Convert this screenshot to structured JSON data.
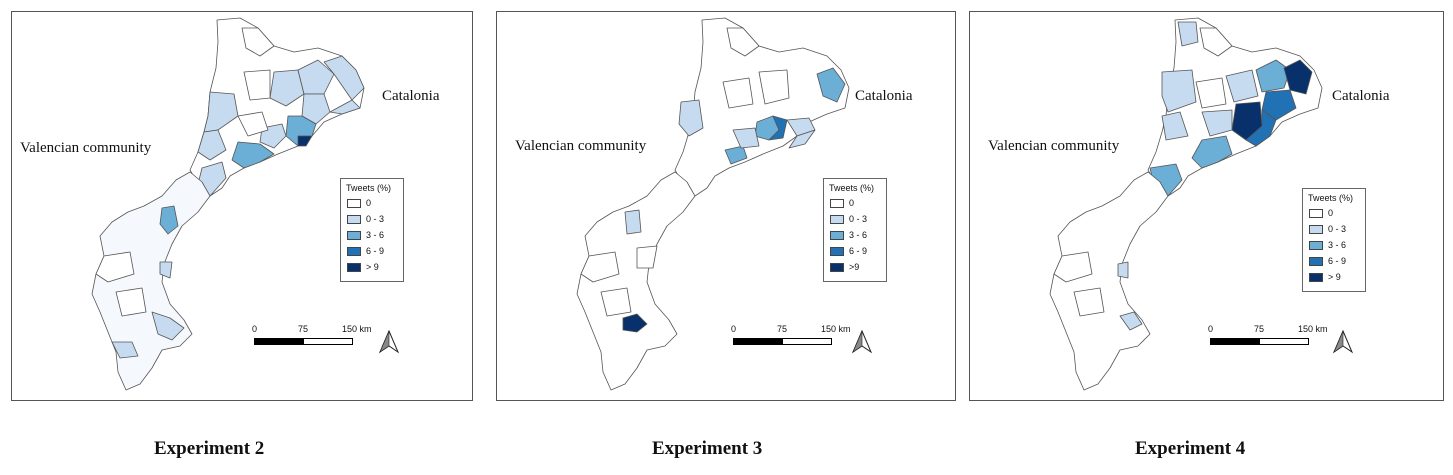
{
  "colors": {
    "c0": "#ffffff",
    "c1": "#c6dbef",
    "c2": "#6baed6",
    "c3": "#2171b5",
    "c4": "#08306b",
    "border": "#555555"
  },
  "panels": [
    {
      "caption": "Experiment 2",
      "region_right": "Catalonia",
      "region_left": "Valencian community",
      "legend": {
        "title": "Tweets (%)",
        "items": [
          "0",
          "0 - 3",
          "3 - 6",
          "6 - 9",
          "> 9"
        ]
      },
      "scale": {
        "ticks": [
          "0",
          "75",
          "150 km"
        ]
      },
      "north_icon": "north-arrow-icon"
    },
    {
      "caption": "Experiment 3",
      "region_right": "Catalonia",
      "region_left": "Valencian community",
      "legend": {
        "title": "Tweets (%)",
        "items": [
          "0",
          "0 - 3",
          "3 - 6",
          "6 - 9",
          ">9"
        ]
      },
      "scale": {
        "ticks": [
          "0",
          "75",
          "150 km"
        ]
      },
      "north_icon": "north-arrow-icon"
    },
    {
      "caption": "Experiment 4",
      "region_right": "Catalonia",
      "region_left": "Valencian community",
      "legend": {
        "title": "Tweets (%)",
        "items": [
          "0",
          "0 - 3",
          "3 - 6",
          "6 - 9",
          "> 9"
        ]
      },
      "scale": {
        "ticks": [
          "0",
          "75",
          "150 km"
        ]
      },
      "north_icon": "north-arrow-icon"
    }
  ]
}
